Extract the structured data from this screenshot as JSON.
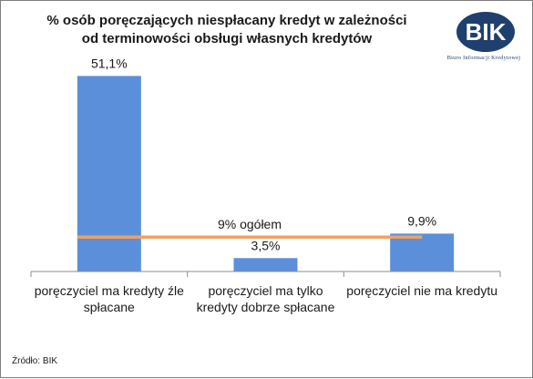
{
  "chart_data": {
    "type": "bar",
    "title_lines": [
      "% osób poręczających niespłacany kredyt w zależności",
      "od terminowości obsługi własnych kredytów"
    ],
    "categories": [
      [
        "poręczyciel ma kredyty źle",
        "spłacane"
      ],
      [
        "poręczyciel ma tylko",
        "kredyty dobrze spłacane"
      ],
      [
        "poręczyciel nie ma kredytu"
      ]
    ],
    "values": [
      51.1,
      3.5,
      9.9
    ],
    "value_labels": [
      "51,1%",
      "3,5%",
      "9,9%"
    ],
    "reference_line": {
      "value": 9.0,
      "label": "9% ogółem",
      "color": "#f0a060"
    },
    "bar_color": "#5b8fd9",
    "ylim": [
      0,
      60
    ],
    "grid": false,
    "legend": false
  },
  "logo": {
    "mark": "BIK",
    "text": "Biuro Informacji Kredytowej"
  },
  "source": "Źródło: BIK"
}
